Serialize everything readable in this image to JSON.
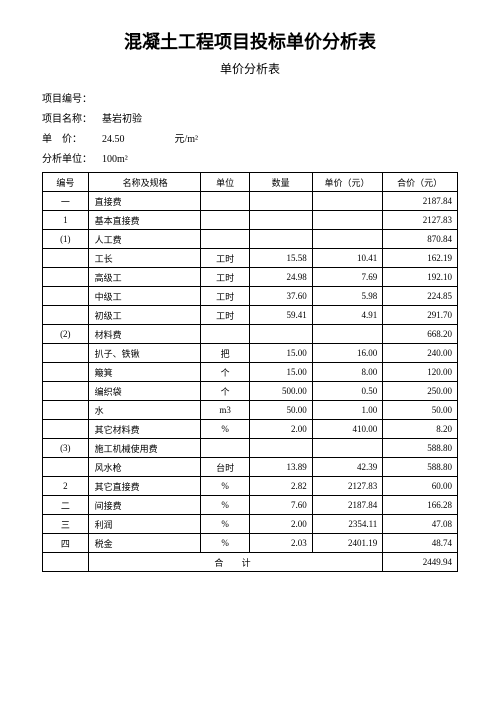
{
  "title": "混凝土工程项目投标单价分析表",
  "subtitle": "单价分析表",
  "meta": {
    "projectCodeLabel": "项目编号：",
    "projectCodeValue": "",
    "projectNameLabel": "项目名称：",
    "projectNameValue": "基岩初验",
    "unitPriceLabel": "单　价：",
    "unitPriceValue": "24.50",
    "unitPriceUnit": "元/m²",
    "analysisUnitLabel": "分析单位：",
    "analysisUnitValue": "100m²"
  },
  "columns": [
    "编号",
    "名称及规格",
    "单位",
    "数量",
    "单价（元）",
    "合价（元）"
  ],
  "rows": [
    {
      "id": "一",
      "name": "直接费",
      "unit": "",
      "qty": "",
      "price": "",
      "total": "2187.84"
    },
    {
      "id": "1",
      "name": "基本直接费",
      "unit": "",
      "qty": "",
      "price": "",
      "total": "2127.83"
    },
    {
      "id": "(1)",
      "name": "人工费",
      "unit": "",
      "qty": "",
      "price": "",
      "total": "870.84"
    },
    {
      "id": "",
      "name": "工长",
      "unit": "工时",
      "qty": "15.58",
      "price": "10.41",
      "total": "162.19"
    },
    {
      "id": "",
      "name": "高级工",
      "unit": "工时",
      "qty": "24.98",
      "price": "7.69",
      "total": "192.10"
    },
    {
      "id": "",
      "name": "中级工",
      "unit": "工时",
      "qty": "37.60",
      "price": "5.98",
      "total": "224.85"
    },
    {
      "id": "",
      "name": "初级工",
      "unit": "工时",
      "qty": "59.41",
      "price": "4.91",
      "total": "291.70"
    },
    {
      "id": "(2)",
      "name": "材料费",
      "unit": "",
      "qty": "",
      "price": "",
      "total": "668.20"
    },
    {
      "id": "",
      "name": "扒子、铁锹",
      "unit": "把",
      "qty": "15.00",
      "price": "16.00",
      "total": "240.00"
    },
    {
      "id": "",
      "name": "簸箕",
      "unit": "个",
      "qty": "15.00",
      "price": "8.00",
      "total": "120.00"
    },
    {
      "id": "",
      "name": "编织袋",
      "unit": "个",
      "qty": "500.00",
      "price": "0.50",
      "total": "250.00"
    },
    {
      "id": "",
      "name": "水",
      "unit": "m3",
      "qty": "50.00",
      "price": "1.00",
      "total": "50.00"
    },
    {
      "id": "",
      "name": "其它材料费",
      "unit": "%",
      "qty": "2.00",
      "price": "410.00",
      "total": "8.20"
    },
    {
      "id": "(3)",
      "name": "施工机械使用费",
      "unit": "",
      "qty": "",
      "price": "",
      "total": "588.80"
    },
    {
      "id": "",
      "name": "风水枪",
      "unit": "台时",
      "qty": "13.89",
      "price": "42.39",
      "total": "588.80"
    },
    {
      "id": "2",
      "name": "其它直接费",
      "unit": "%",
      "qty": "2.82",
      "price": "2127.83",
      "total": "60.00"
    },
    {
      "id": "二",
      "name": "间接费",
      "unit": "%",
      "qty": "7.60",
      "price": "2187.84",
      "total": "166.28"
    },
    {
      "id": "三",
      "name": "利润",
      "unit": "%",
      "qty": "2.00",
      "price": "2354.11",
      "total": "47.08"
    },
    {
      "id": "四",
      "name": "税金",
      "unit": "%",
      "qty": "2.03",
      "price": "2401.19",
      "total": "48.74"
    }
  ],
  "sumLabel": "合 计",
  "sumTotal": "2449.94"
}
